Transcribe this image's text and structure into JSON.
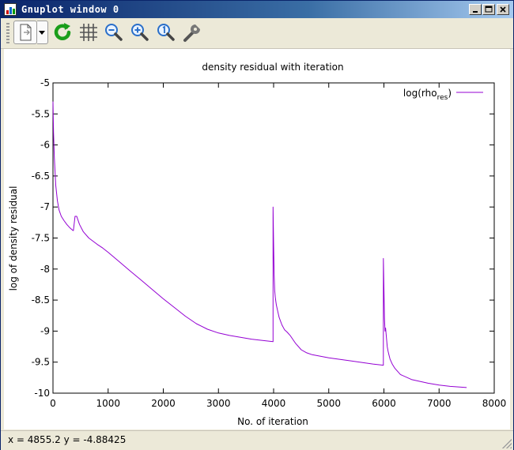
{
  "window": {
    "title": "Gnuplot window 0",
    "controls": [
      "minimize-icon",
      "maximize-icon",
      "close-icon"
    ]
  },
  "toolbar": {
    "buttons": [
      {
        "name": "copy-to-clipboard-button",
        "icon": "copy-icon"
      },
      {
        "name": "copy-options-dropdown",
        "icon": "chevron-down-icon"
      },
      {
        "name": "replot-button",
        "icon": "refresh-icon"
      },
      {
        "name": "toggle-grid-button",
        "icon": "grid-icon"
      },
      {
        "name": "zoom-previous-button",
        "icon": "zoom-out-icon"
      },
      {
        "name": "zoom-next-button",
        "icon": "zoom-in-icon"
      },
      {
        "name": "autoscale-button",
        "icon": "zoom-reset-icon"
      },
      {
        "name": "options-button",
        "icon": "wrench-icon"
      }
    ],
    "accent_green": "#1a9e1a",
    "accent_blue": "#2a6fc9"
  },
  "chart_data": {
    "type": "line",
    "title": "density residual with iteration",
    "xlabel": "No. of iteration",
    "ylabel": "log of density residual",
    "xlim": [
      0,
      8000
    ],
    "ylim": [
      -10,
      -5
    ],
    "xticks": [
      "0",
      "1000",
      "2000",
      "3000",
      "4000",
      "5000",
      "6000",
      "7000",
      "8000"
    ],
    "yticks": [
      "-5",
      "-5.5",
      "-6",
      "-6.5",
      "-7",
      "-7.5",
      "-8",
      "-8.5",
      "-9",
      "-9.5",
      "-10"
    ],
    "grid": false,
    "legend_position": "top-right",
    "series": [
      {
        "name_base": "log(rho",
        "name_sub": "res",
        "name_close": ")",
        "color": "#9400d3",
        "x": [
          0,
          10,
          25,
          50,
          80,
          110,
          150,
          200,
          250,
          300,
          350,
          370,
          400,
          430,
          480,
          550,
          650,
          800,
          900,
          1000,
          1200,
          1400,
          1600,
          1800,
          2000,
          2200,
          2400,
          2600,
          2800,
          3000,
          3200,
          3400,
          3600,
          3800,
          3990,
          3990,
          4000,
          4010,
          4020,
          4030,
          4040,
          4050,
          4075,
          4100,
          4150,
          4200,
          4250,
          4300,
          4400,
          4500,
          4600,
          4700,
          5000,
          5400,
          5800,
          5990,
          5990,
          6000,
          6010,
          6020,
          6030,
          6040,
          6050,
          6060,
          6075,
          6090,
          6110,
          6150,
          6200,
          6300,
          6500,
          6800,
          7000,
          7200,
          7500
        ],
        "y": [
          -5.3,
          -5.8,
          -6.2,
          -6.65,
          -6.9,
          -7.05,
          -7.15,
          -7.22,
          -7.28,
          -7.33,
          -7.37,
          -7.38,
          -7.15,
          -7.15,
          -7.28,
          -7.4,
          -7.5,
          -7.6,
          -7.66,
          -7.73,
          -7.88,
          -8.03,
          -8.18,
          -8.33,
          -8.48,
          -8.62,
          -8.76,
          -8.88,
          -8.97,
          -9.03,
          -9.07,
          -9.1,
          -9.13,
          -9.15,
          -9.17,
          -7.0,
          -7.6,
          -8.1,
          -8.35,
          -8.45,
          -8.52,
          -8.58,
          -8.68,
          -8.78,
          -8.9,
          -8.98,
          -9.02,
          -9.07,
          -9.2,
          -9.3,
          -9.35,
          -9.38,
          -9.43,
          -9.48,
          -9.53,
          -9.55,
          -7.83,
          -8.3,
          -8.8,
          -9.0,
          -8.95,
          -9.05,
          -9.15,
          -9.25,
          -9.32,
          -9.38,
          -9.45,
          -9.53,
          -9.6,
          -9.7,
          -9.78,
          -9.84,
          -9.87,
          -9.89,
          -9.91
        ]
      }
    ]
  },
  "status": {
    "text": "x = 4855.2 y = -4.88425"
  }
}
